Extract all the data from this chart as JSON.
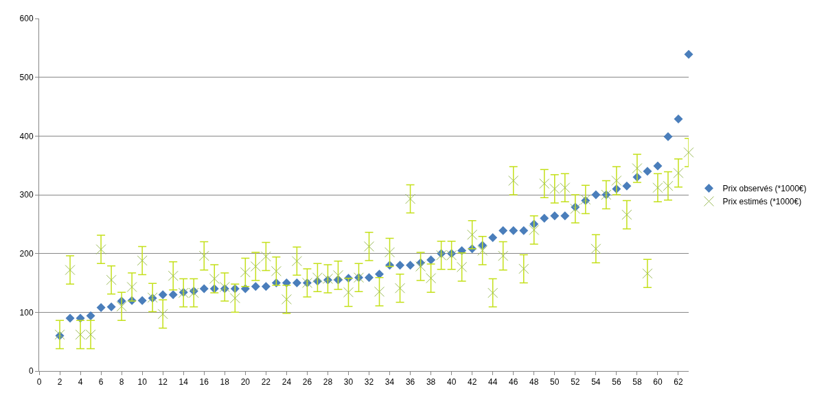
{
  "chart_data": {
    "type": "scatter",
    "x": [
      2,
      3,
      4,
      5,
      6,
      7,
      8,
      9,
      10,
      11,
      12,
      13,
      14,
      15,
      16,
      17,
      18,
      19,
      20,
      21,
      22,
      23,
      24,
      25,
      26,
      27,
      28,
      29,
      30,
      31,
      32,
      33,
      34,
      35,
      36,
      37,
      38,
      39,
      40,
      41,
      42,
      43,
      44,
      45,
      46,
      47,
      48,
      49,
      50,
      51,
      52,
      53,
      54,
      55,
      56,
      57,
      58,
      59,
      60,
      61,
      62,
      63
    ],
    "series": [
      {
        "name": "Prix observés (*1000€)",
        "color": "#4a7ebb",
        "marker": "diamond",
        "values": [
          60,
          90,
          90,
          94,
          108,
          109,
          119,
          120,
          120,
          124,
          130,
          130,
          134,
          136,
          140,
          140,
          140,
          140,
          140,
          144,
          144,
          150,
          150,
          150,
          150,
          153,
          155,
          155,
          158,
          159,
          159,
          165,
          180,
          180,
          180,
          184,
          189,
          200,
          200,
          205,
          208,
          214,
          227,
          239,
          239,
          239,
          250,
          260,
          264,
          264,
          279,
          290,
          300,
          300,
          310,
          315,
          330,
          340,
          349,
          399,
          429,
          539
        ]
      },
      {
        "name": "Prix estimés (*1000€)",
        "color": "#9bbb59",
        "marker": "cross",
        "errors": [
          24,
          24,
          24,
          24,
          24,
          24,
          24,
          24,
          24,
          24,
          24,
          24,
          24,
          24,
          24,
          24,
          24,
          24,
          24,
          24,
          24,
          24,
          24,
          24,
          24,
          24,
          24,
          24,
          24,
          24,
          24,
          24,
          24,
          24,
          24,
          24,
          24,
          24,
          24,
          24,
          24,
          24,
          24,
          24,
          24,
          24,
          24,
          24,
          24,
          24,
          24,
          24,
          24,
          24,
          24,
          24,
          24,
          24,
          24,
          24,
          24,
          24
        ],
        "values": [
          62,
          172,
          62,
          62,
          207,
          155,
          110,
          143,
          188,
          125,
          97,
          162,
          133,
          133,
          196,
          157,
          143,
          124,
          168,
          178,
          195,
          170,
          122,
          187,
          150,
          159,
          157,
          163,
          134,
          159,
          212,
          135,
          202,
          141,
          293,
          178,
          158,
          197,
          197,
          177,
          232,
          205,
          133,
          196,
          324,
          174,
          240,
          319,
          310,
          312,
          276,
          292,
          208,
          300,
          324,
          266,
          345,
          166,
          312,
          315,
          337,
          372
        ]
      }
    ],
    "xlim": [
      0,
      63
    ],
    "xticks": [
      0,
      2,
      4,
      6,
      8,
      10,
      12,
      14,
      16,
      18,
      20,
      22,
      24,
      26,
      28,
      30,
      32,
      34,
      36,
      38,
      40,
      42,
      44,
      46,
      48,
      50,
      52,
      54,
      56,
      58,
      60,
      62
    ],
    "ylim": [
      0,
      600
    ],
    "yticks": [
      0,
      100,
      200,
      300,
      400,
      500,
      600
    ],
    "grid": "y",
    "legend": "right"
  }
}
